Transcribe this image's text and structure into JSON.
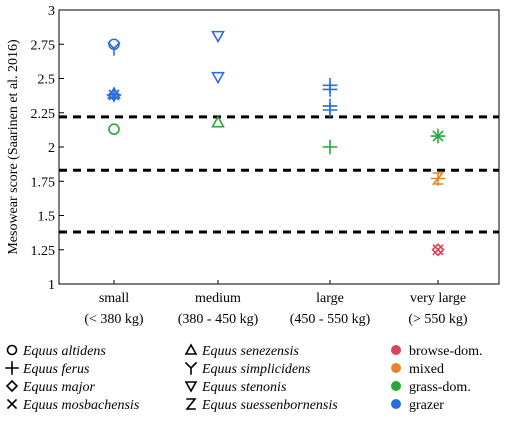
{
  "chart_data": {
    "type": "scatter",
    "ylabel": "Mesowear score (Saarinen et al. 2016)",
    "ylim": [
      1,
      3
    ],
    "yticks": [
      "1",
      "1.25",
      "1.5",
      "1.75",
      "2",
      "2.25",
      "2.5",
      "2.75",
      "3"
    ],
    "ytick_values": [
      1,
      1.25,
      1.5,
      1.75,
      2,
      2.25,
      2.5,
      2.75,
      3
    ],
    "categories": [
      {
        "line1": "small",
        "line2": "(< 380 kg)"
      },
      {
        "line1": "medium",
        "line2": "(380 - 450 kg)"
      },
      {
        "line1": "large",
        "line2": "(450 - 550 kg)"
      },
      {
        "line1": "very large",
        "line2": "(> 550 kg)"
      }
    ],
    "thresholds": [
      2.22,
      1.83,
      1.38
    ],
    "diet_colors": {
      "browse-dom.": "#d9425a",
      "mixed": "#e6862a",
      "grass-dom.": "#2aa63a",
      "grazer": "#2b6fd8"
    },
    "points": [
      {
        "species": "Equus altidens",
        "marker": "circle",
        "category": 0,
        "y": 2.75,
        "diet": "grazer"
      },
      {
        "species": "Equus altidens",
        "marker": "circle",
        "category": 0,
        "y": 2.13,
        "diet": "grass-dom."
      },
      {
        "species": "Equus simplicidens",
        "marker": "y",
        "category": 0,
        "y": 2.72,
        "diet": "grazer"
      },
      {
        "species": "Equus senezensis",
        "marker": "triangle",
        "category": 0,
        "y": 2.39,
        "diet": "grazer"
      },
      {
        "species": "Equus ferus",
        "marker": "plus",
        "category": 0,
        "y": 2.38,
        "diet": "grazer"
      },
      {
        "species": "Equus major",
        "marker": "diamond",
        "category": 0,
        "y": 2.38,
        "diet": "grazer"
      },
      {
        "species": "Equus mosbachensis",
        "marker": "x",
        "category": 0,
        "y": 2.38,
        "diet": "grazer"
      },
      {
        "species": "Equus stenonis",
        "marker": "down-triangle",
        "category": 1,
        "y": 2.81,
        "diet": "grazer"
      },
      {
        "species": "Equus stenonis",
        "marker": "down-triangle",
        "category": 1,
        "y": 2.51,
        "diet": "grazer"
      },
      {
        "species": "Equus senezensis",
        "marker": "triangle",
        "category": 1,
        "y": 2.18,
        "diet": "grass-dom."
      },
      {
        "species": "Equus ferus",
        "marker": "plus",
        "category": 2,
        "y": 2.45,
        "diet": "grazer"
      },
      {
        "species": "Equus ferus",
        "marker": "plus",
        "category": 2,
        "y": 2.42,
        "diet": "grazer"
      },
      {
        "species": "Equus ferus",
        "marker": "plus",
        "category": 2,
        "y": 2.3,
        "diet": "grazer"
      },
      {
        "species": "Equus ferus",
        "marker": "plus",
        "category": 2,
        "y": 2.27,
        "diet": "grazer"
      },
      {
        "species": "Equus ferus",
        "marker": "plus",
        "category": 2,
        "y": 2.0,
        "diet": "grass-dom."
      },
      {
        "species": "Equus ferus",
        "marker": "plus",
        "category": 3,
        "y": 2.08,
        "diet": "grass-dom."
      },
      {
        "species": "Equus mosbachensis",
        "marker": "x",
        "category": 3,
        "y": 2.08,
        "diet": "grass-dom."
      },
      {
        "species": "Equus suessenbornensis",
        "marker": "z",
        "category": 3,
        "y": 1.77,
        "diet": "mixed"
      },
      {
        "species": "Equus ferus",
        "marker": "plus",
        "category": 3,
        "y": 1.77,
        "diet": "mixed"
      },
      {
        "species": "Equus major",
        "marker": "diamond",
        "category": 3,
        "y": 1.25,
        "diet": "browse-dom."
      },
      {
        "species": "Equus mosbachensis",
        "marker": "x",
        "category": 3,
        "y": 1.25,
        "diet": "browse-dom."
      }
    ],
    "legend_species": [
      {
        "marker": "circle",
        "label": "Equus altidens"
      },
      {
        "marker": "plus",
        "label": "Equus ferus"
      },
      {
        "marker": "diamond",
        "label": "Equus major"
      },
      {
        "marker": "x",
        "label": "Equus mosbachensis"
      },
      {
        "marker": "triangle",
        "label": "Equus senezensis"
      },
      {
        "marker": "y",
        "label": "Equus simplicidens"
      },
      {
        "marker": "down-triangle",
        "label": "Equus stenonis"
      },
      {
        "marker": "z",
        "label": "Equus suessenbornensis"
      }
    ],
    "legend_diet": [
      {
        "label": "browse-dom.",
        "color": "#d9425a"
      },
      {
        "label": "mixed",
        "color": "#e6862a"
      },
      {
        "label": "grass-dom.",
        "color": "#2aa63a"
      },
      {
        "label": "grazer",
        "color": "#2b6fd8"
      }
    ]
  }
}
